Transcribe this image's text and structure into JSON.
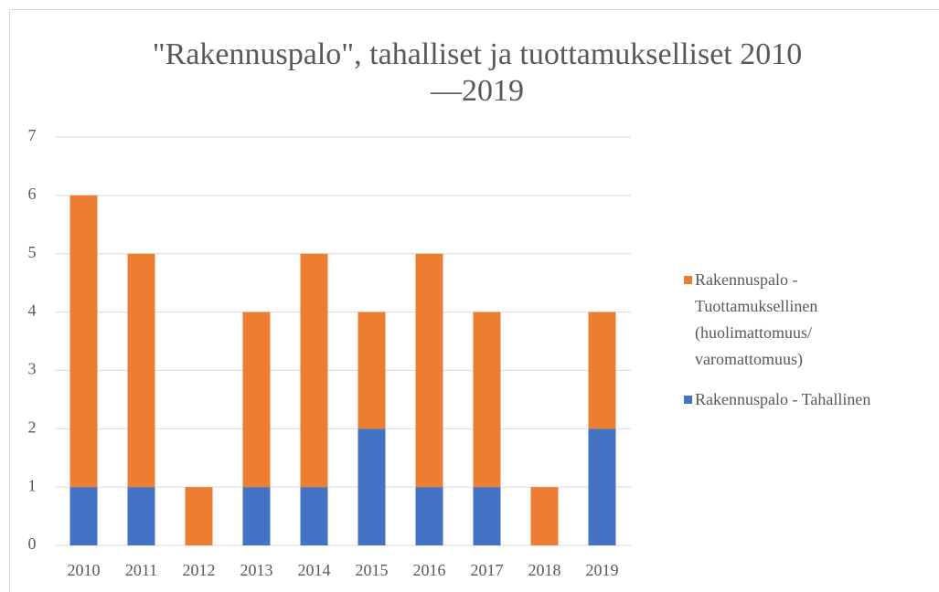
{
  "chart_data": {
    "type": "bar",
    "stacked": true,
    "title": "\"Rakennuspalo\", tahalliset ja tuottamukselliset 2010—2019",
    "categories": [
      "2010",
      "2011",
      "2012",
      "2013",
      "2014",
      "2015",
      "2016",
      "2017",
      "2018",
      "2019"
    ],
    "series": [
      {
        "name": "Rakennuspalo - Tahallinen",
        "color": "#4472c4",
        "values": [
          1,
          1,
          0,
          1,
          1,
          2,
          1,
          1,
          0,
          2
        ]
      },
      {
        "name": "Rakennuspalo - Tuottamuksellinen (huolimattomuus/ varomattomuus)",
        "color": "#ed7d31",
        "values": [
          5,
          4,
          1,
          3,
          4,
          2,
          4,
          3,
          1,
          2
        ]
      }
    ],
    "ylim": [
      0,
      7
    ],
    "yticks": [
      0,
      1,
      2,
      3,
      4,
      5,
      6,
      7
    ],
    "grid": true,
    "legend": "right"
  }
}
